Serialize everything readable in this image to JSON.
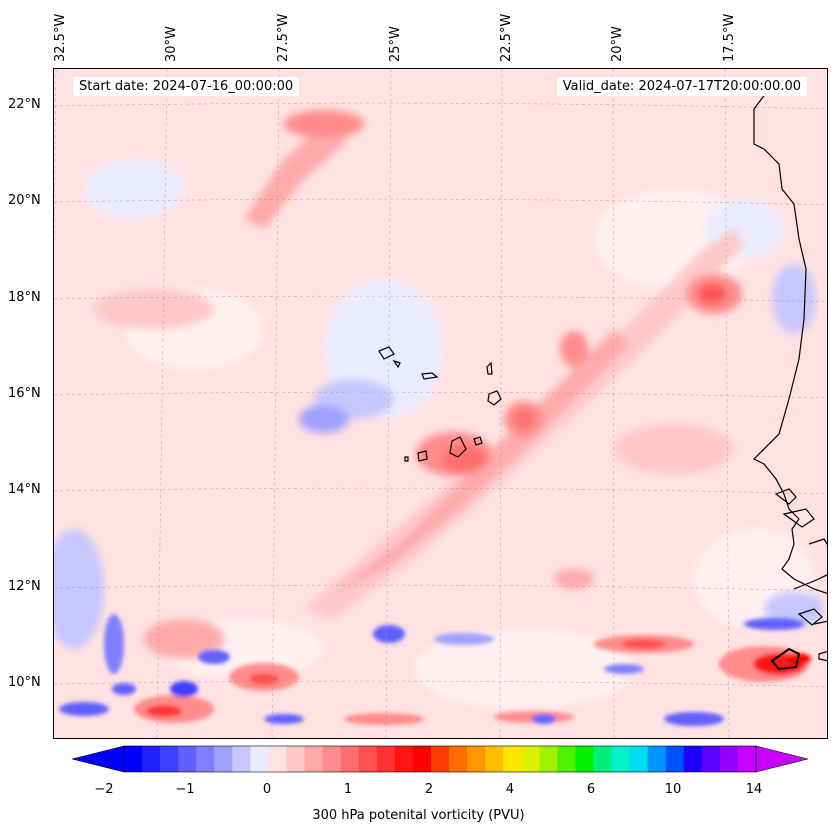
{
  "map": {
    "start_date": "Start date: 2024-07-16_00:00:00",
    "valid_date": "Valid_date: 2024-07-17T20:00:00.00",
    "lon_labels": [
      "32.5°W",
      "30°W",
      "27.5°W",
      "25°W",
      "22.5°W",
      "20°W",
      "17.5°W"
    ],
    "lat_labels": [
      "22°N",
      "20°N",
      "18°N",
      "16°N",
      "14°N",
      "12°N",
      "10°N"
    ],
    "variable": "300 hPa potenital vorticity (PVU)"
  },
  "colorbar": {
    "tick_labels": [
      "−2",
      "−1",
      "0",
      "1",
      "2",
      "4",
      "6",
      "10",
      "14"
    ],
    "colors": [
      "#0000ff",
      "#2020ff",
      "#4040ff",
      "#6060ff",
      "#8080ff",
      "#a0a0ff",
      "#c8c8ff",
      "#ebebff",
      "#ffe1e1",
      "#ffc8c8",
      "#ffaaaa",
      "#ff8c8c",
      "#ff6e6e",
      "#ff5050",
      "#ff3232",
      "#ff1414",
      "#ff0000",
      "#ff3c00",
      "#ff6e00",
      "#ff9600",
      "#ffbe00",
      "#ffe600",
      "#dcf000",
      "#a0f000",
      "#50f000",
      "#00f000",
      "#00f07a",
      "#00f0c8",
      "#00dcf0",
      "#0096ff",
      "#0050ff",
      "#1e00ff",
      "#5a00ff",
      "#9600ff",
      "#c800ff"
    ]
  }
}
